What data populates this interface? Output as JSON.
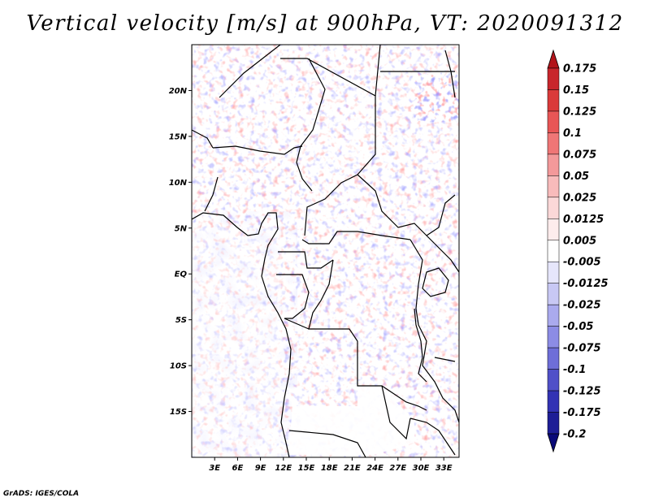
{
  "title": "Vertical velocity [m/s] at 900hPa, VT: 2020091312",
  "credit": "GrADS: IGES/COLA",
  "map": {
    "lon_range": [
      0,
      35
    ],
    "lat_range": [
      -20,
      25
    ],
    "lat_ticks": [
      {
        "value": 20,
        "label": "20N"
      },
      {
        "value": 15,
        "label": "15N"
      },
      {
        "value": 10,
        "label": "10N"
      },
      {
        "value": 5,
        "label": "5N"
      },
      {
        "value": 0,
        "label": "EQ"
      },
      {
        "value": -5,
        "label": "5S"
      },
      {
        "value": -10,
        "label": "10S"
      },
      {
        "value": -15,
        "label": "15S"
      }
    ],
    "lon_ticks": [
      {
        "value": 3,
        "label": "3E"
      },
      {
        "value": 6,
        "label": "6E"
      },
      {
        "value": 9,
        "label": "9E"
      },
      {
        "value": 12,
        "label": "12E"
      },
      {
        "value": 15,
        "label": "15E"
      },
      {
        "value": 18,
        "label": "18E"
      },
      {
        "value": 21,
        "label": "21E"
      },
      {
        "value": 24,
        "label": "24E"
      },
      {
        "value": 27,
        "label": "27E"
      },
      {
        "value": 30,
        "label": "30E"
      },
      {
        "value": 33,
        "label": "33E"
      }
    ]
  },
  "colorbar": {
    "levels": [
      "0.175",
      "0.15",
      "0.125",
      "0.1",
      "0.075",
      "0.05",
      "0.025",
      "0.0125",
      "0.005",
      "-0.005",
      "-0.0125",
      "-0.025",
      "-0.05",
      "-0.075",
      "-0.1",
      "-0.125",
      "-0.175",
      "-0.2"
    ],
    "colors": [
      "#b2141a",
      "#c8262c",
      "#da3a3a",
      "#e85656",
      "#ef7676",
      "#f3999a",
      "#f8bbbb",
      "#fbd8d8",
      "#fdecec",
      "#ffffff",
      "#e6e6fb",
      "#c8c8f4",
      "#aaaaee",
      "#8c8ce5",
      "#6e6ed8",
      "#5050c8",
      "#3232b4",
      "#1e1e96",
      "#0a0a78"
    ]
  }
}
